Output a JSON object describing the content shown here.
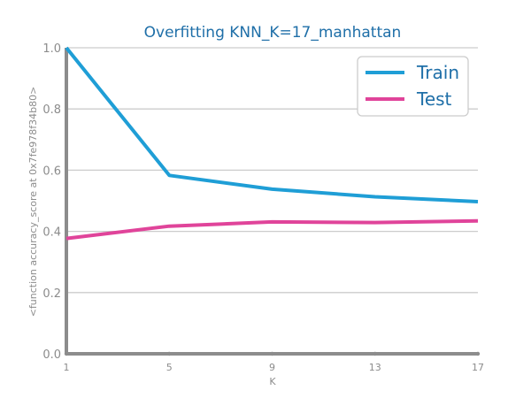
{
  "chart_data": {
    "type": "line",
    "title": "Overfitting KNN_K=17_manhattan",
    "xlabel": "K",
    "ylabel": "<function accuracy_score at 0x7fe978f34b80>",
    "x": [
      1,
      5,
      9,
      13,
      17
    ],
    "xticks": [
      "1",
      "5",
      "9",
      "13",
      "17"
    ],
    "yticks": [
      "0.0",
      "0.2",
      "0.4",
      "0.6",
      "0.8",
      "1.0"
    ],
    "xlim": [
      1,
      17
    ],
    "ylim": [
      0,
      1
    ],
    "grid": "horizontal",
    "legend_position": "top-right",
    "series": [
      {
        "name": "Train",
        "color": "#1f9ed6",
        "values": [
          1.0,
          0.583,
          0.538,
          0.513,
          0.497
        ]
      },
      {
        "name": "Test",
        "color": "#e0449a",
        "values": [
          0.377,
          0.417,
          0.431,
          0.429,
          0.434
        ]
      }
    ]
  }
}
